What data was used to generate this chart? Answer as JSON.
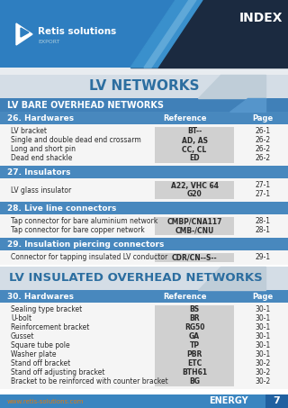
{
  "title_section": "LV NETWORKS",
  "section1_title": "LV BARE OVERHEAD NETWORKS",
  "row26_title": "26. Hardwares",
  "ref_col": "Reference",
  "page_col": "Page",
  "row26_items": [
    {
      "desc": "LV bracket",
      "ref": "BT--",
      "page": "26-1"
    },
    {
      "desc": "Single and double dead end crossarm",
      "ref": "AD, AS",
      "page": "26-2"
    },
    {
      "desc": "Long and short pin",
      "ref": "CC, CL",
      "page": "26-2"
    },
    {
      "desc": "Dead end shackle",
      "ref": "ED",
      "page": "26-2"
    }
  ],
  "row27_title": "27. Insulators",
  "row27_items": [
    {
      "desc": "LV glass insulator",
      "ref1": "A22, VHC 64",
      "ref2": "G20",
      "page1": "27-1",
      "page2": "27-1"
    }
  ],
  "row28_title": "28. Live line connectors",
  "row28_items": [
    {
      "desc": "Tap connector for bare aluminium network",
      "ref": "CMBP/CNA117",
      "page": "28-1"
    },
    {
      "desc": "Tap connector for bare copper network",
      "ref": "CMB-/CNU",
      "page": "28-1"
    }
  ],
  "row29_title": "29. Insulation piercing connectors",
  "row29_items": [
    {
      "desc": "Connector for tapping insulated LV conductor",
      "ref": "CDR/CN--S--",
      "page": "29-1"
    }
  ],
  "section2_title": "LV INSULATED OVERHEAD NETWORKS",
  "row30_title": "30. Hardwares",
  "row30_items": [
    {
      "desc": "Sealing type bracket",
      "ref": "BS",
      "page": "30-1"
    },
    {
      "desc": "U-bolt",
      "ref": "BR",
      "page": "30-1"
    },
    {
      "desc": "Reinforcement bracket",
      "ref": "RG50",
      "page": "30-1"
    },
    {
      "desc": "Gusset",
      "ref": "GA",
      "page": "30-1"
    },
    {
      "desc": "Square tube pole",
      "ref": "TP",
      "page": "30-1"
    },
    {
      "desc": "Washer plate",
      "ref": "PBR",
      "page": "30-1"
    },
    {
      "desc": "Stand off bracket",
      "ref": "ETC",
      "page": "30-2"
    },
    {
      "desc": "Stand off adjusting bracket",
      "ref": "BTH61",
      "page": "30-2"
    },
    {
      "desc": "Bracket to be reinforced with counter bracket",
      "ref": "BG",
      "page": "30-2"
    }
  ],
  "footer_url": "www.retis-solutions.com",
  "footer_label": "ENERGY",
  "footer_page": "7",
  "col_blue": "#3a85c0",
  "col_dark": "#1b2a40",
  "col_header_blue": "#2e7ec0",
  "col_light_blue": "#2a82c4",
  "col_banner_bg": "#d4dde6",
  "col_banner_stripe": "#bfcdd8",
  "col_row_hdr": "#4888be",
  "col_gray_ref": "#d0d0d0",
  "col_white_row": "#f5f5f5",
  "col_text_dark": "#2a2a2a",
  "col_footer_orange": "#e07b10",
  "col_footer_blue": "#3a85c0",
  "col_sec_bar": "#4080b8"
}
